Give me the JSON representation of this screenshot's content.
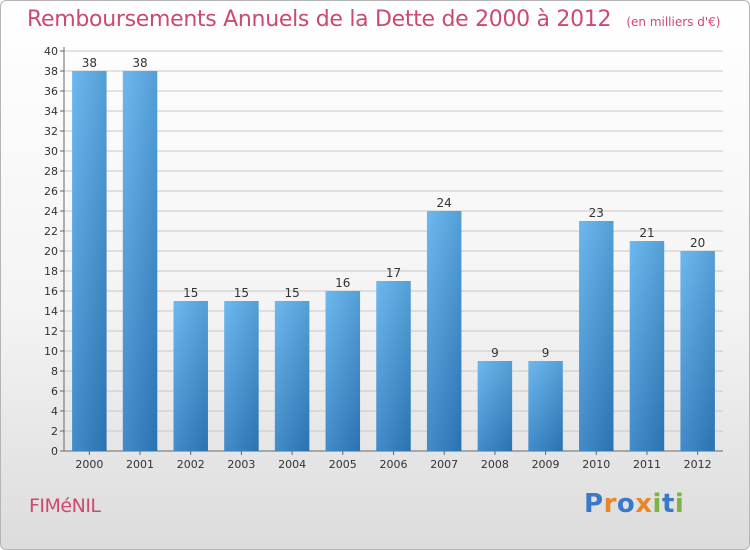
{
  "title": "Remboursements Annuels de la Dette de 2000 à 2012",
  "unit": "(en milliers d'€)",
  "commune": "FIMéNIL",
  "logo": {
    "letters": [
      "P",
      "r",
      "o",
      "x",
      "i",
      "t",
      "i"
    ],
    "colors": [
      "#3a78c8",
      "#e8862a",
      "#3a78c8",
      "#e8862a",
      "#7cb342",
      "#3a78c8",
      "#7cb342"
    ]
  },
  "colors": {
    "bar_top": "#5eb0ee",
    "bar_bottom": "#2e7fc3",
    "title": "#cc4a6f",
    "grid": "#c8c8c8"
  },
  "chart_data": {
    "type": "bar",
    "categories": [
      "2000",
      "2001",
      "2002",
      "2003",
      "2004",
      "2005",
      "2006",
      "2007",
      "2008",
      "2009",
      "2010",
      "2011",
      "2012"
    ],
    "values": [
      38,
      38,
      15,
      15,
      15,
      16,
      17,
      24,
      9,
      9,
      23,
      21,
      20
    ],
    "ylim": [
      0,
      40
    ],
    "ytick_step": 2,
    "grid": true,
    "data_labels": true
  }
}
